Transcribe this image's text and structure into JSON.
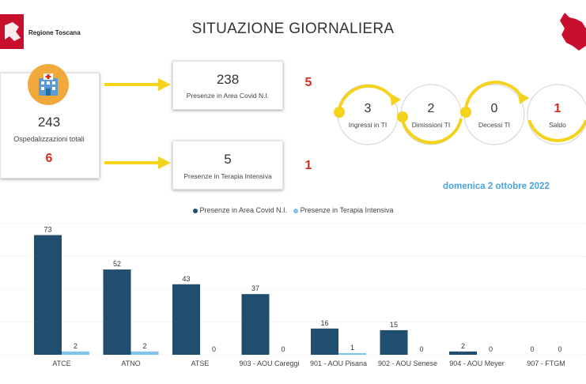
{
  "header": {
    "org_name": "Regione Toscana",
    "title": "SITUAZIONE GIORNALIERA"
  },
  "colors": {
    "red": "#d62b1e",
    "dark_series": "#1f4e6e",
    "light_series": "#7fc4ec",
    "arrow": "#f5d21c",
    "date": "#4aa3df"
  },
  "hospital": {
    "total": "243",
    "label": "Ospedalizzazioni totali",
    "delta": "6"
  },
  "area_ni": {
    "value": "238",
    "label": "Presenze in Area Covid N.I.",
    "delta": "5"
  },
  "ti": {
    "value": "5",
    "label": "Presenze in Terapia Intensiva",
    "delta": "1"
  },
  "flow": [
    {
      "value": "3",
      "label": "Ingressi in TI"
    },
    {
      "value": "2",
      "label": "Dimissioni TI"
    },
    {
      "value": "0",
      "label": "Decessi TI"
    },
    {
      "value": "1",
      "label": "Saldo"
    }
  ],
  "date": "domenica 2 ottobre 2022",
  "chart_data": {
    "type": "bar",
    "categories": [
      "ATCE",
      "ATNO",
      "ATSE",
      "903 - AOU Careggi",
      "901 - AOU Pisana",
      "902 - AOU Senese",
      "904 - AOU Meyer",
      "907 - FTGM"
    ],
    "series": [
      {
        "name": "Presenze in Area Covid N.I.",
        "values": [
          73,
          52,
          43,
          37,
          16,
          15,
          2,
          0
        ]
      },
      {
        "name": "Presenze in Terapia Intensiva",
        "values": [
          2,
          2,
          0,
          0,
          1,
          0,
          0,
          0
        ]
      }
    ],
    "ylim": [
      0,
      80
    ],
    "legend": "top-center"
  }
}
